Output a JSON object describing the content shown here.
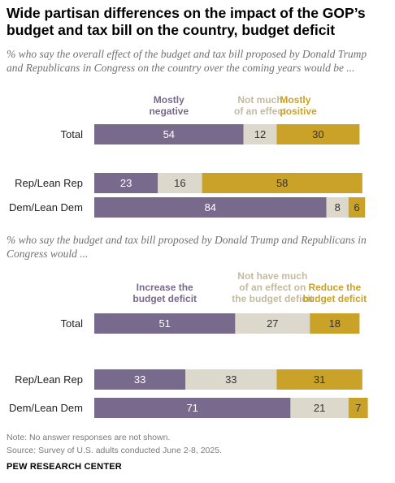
{
  "title": "Wide partisan differences on the impact of the GOP’s budget and tax bill on the country, budget deficit",
  "note": "Note: No answer responses are not shown.",
  "source": "Source: Survey of U.S. adults conducted June 2-8, 2025.",
  "brand": "PEW RESEARCH CENTER",
  "colors": {
    "negative": "#786a8c",
    "neutral": "#dcd8cc",
    "positive": "#c9a227",
    "neutral_header": "#c3bb9f",
    "positive_header": "#c9a227",
    "negative_header": "#786a8c"
  },
  "chart_data": [
    {
      "type": "bar",
      "subtitle": "% who say the overall effect of the budget and tax bill proposed by Donald Trump and Republicans in Congress on the country over the coming years would be ...",
      "categories": [
        "Total",
        "Rep/Lean Rep",
        "Dem/Lean Dem"
      ],
      "series": [
        {
          "name": "Mostly negative",
          "values": [
            54,
            23,
            84
          ]
        },
        {
          "name": "Not much of an effect",
          "values": [
            12,
            16,
            8
          ]
        },
        {
          "name": "Mostly positive",
          "values": [
            30,
            58,
            6
          ]
        }
      ],
      "stacked": true,
      "xlim": [
        0,
        100
      ]
    },
    {
      "type": "bar",
      "subtitle": "% who say the budget and tax bill proposed by Donald Trump and Republicans in Congress would ...",
      "categories": [
        "Total",
        "Rep/Lean Rep",
        "Dem/Lean Dem"
      ],
      "series": [
        {
          "name": "Increase the budget deficit",
          "values": [
            51,
            33,
            71
          ]
        },
        {
          "name": "Not have much of an effect on the budget deficit",
          "values": [
            27,
            33,
            21
          ]
        },
        {
          "name": "Reduce the budget deficit",
          "values": [
            18,
            31,
            7
          ]
        }
      ],
      "stacked": true,
      "xlim": [
        0,
        100
      ]
    }
  ]
}
